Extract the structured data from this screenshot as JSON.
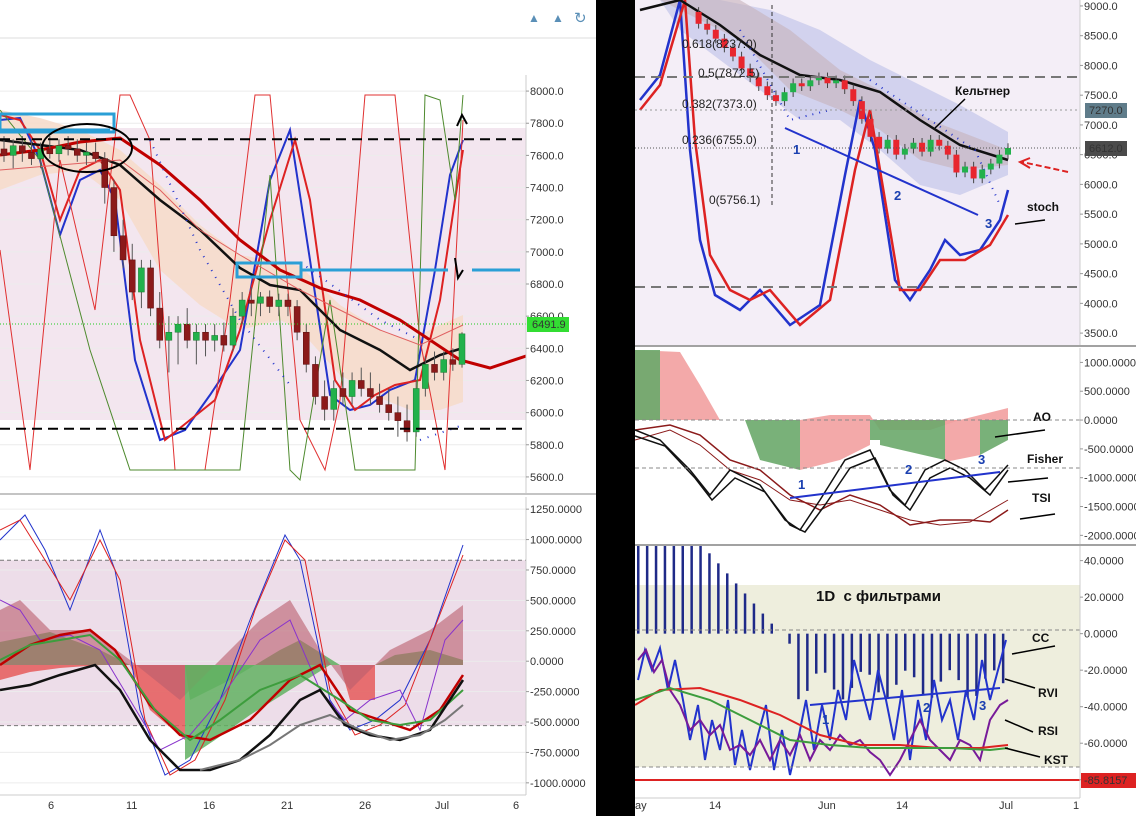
{
  "toolbar": {
    "icons": [
      "arrow-up-icon",
      "arrow-up-icon",
      "refresh-icon"
    ]
  },
  "colors": {
    "bull": "#22b14c",
    "bear": "#8b1a1a",
    "level": "#000000",
    "box": "#2a9fd6",
    "sma": "#c00000",
    "stoch_k": "#2233cc",
    "stoch_d": "#dd2222",
    "lime_tag": "#33dd33",
    "grey_tag": "#5f7c8a"
  },
  "chart_data": [
    {
      "type": "candlestick",
      "panel": "left-price",
      "y_ticks": [
        "8000.0",
        "7800.0",
        "7600.0",
        "7400.0",
        "7200.0",
        "7000.0",
        "6800.0",
        "6600.0",
        "6400.0",
        "6200.0",
        "6000.0",
        "5800.0",
        "5600.0"
      ],
      "x_ticks": [
        "6",
        "11",
        "16",
        "21",
        "26",
        "Jul",
        "6"
      ],
      "last_price": "6491.9",
      "ylim": [
        5500,
        8100
      ],
      "levels": [
        7700,
        5900
      ],
      "candles": [
        {
          "o": 7640,
          "h": 7720,
          "l": 7560,
          "c": 7600
        },
        {
          "o": 7600,
          "h": 7700,
          "l": 7520,
          "c": 7660
        },
        {
          "o": 7660,
          "h": 7720,
          "l": 7560,
          "c": 7620
        },
        {
          "o": 7620,
          "h": 7700,
          "l": 7540,
          "c": 7580
        },
        {
          "o": 7580,
          "h": 7680,
          "l": 7520,
          "c": 7640
        },
        {
          "o": 7640,
          "h": 7720,
          "l": 7580,
          "c": 7610
        },
        {
          "o": 7610,
          "h": 7700,
          "l": 7560,
          "c": 7660
        },
        {
          "o": 7660,
          "h": 7720,
          "l": 7600,
          "c": 7640
        },
        {
          "o": 7640,
          "h": 7700,
          "l": 7560,
          "c": 7600
        },
        {
          "o": 7600,
          "h": 7680,
          "l": 7540,
          "c": 7620
        },
        {
          "o": 7620,
          "h": 7680,
          "l": 7560,
          "c": 7580
        },
        {
          "o": 7580,
          "h": 7620,
          "l": 7300,
          "c": 7400
        },
        {
          "o": 7400,
          "h": 7450,
          "l": 7000,
          "c": 7100
        },
        {
          "o": 7100,
          "h": 7200,
          "l": 6900,
          "c": 6950
        },
        {
          "o": 6950,
          "h": 7050,
          "l": 6700,
          "c": 6750
        },
        {
          "o": 6750,
          "h": 6950,
          "l": 6650,
          "c": 6900
        },
        {
          "o": 6900,
          "h": 6950,
          "l": 6600,
          "c": 6650
        },
        {
          "o": 6650,
          "h": 6750,
          "l": 6400,
          "c": 6450
        },
        {
          "o": 6450,
          "h": 6600,
          "l": 6250,
          "c": 6500
        },
        {
          "o": 6500,
          "h": 6600,
          "l": 6300,
          "c": 6550
        },
        {
          "o": 6550,
          "h": 6650,
          "l": 6400,
          "c": 6450
        },
        {
          "o": 6450,
          "h": 6550,
          "l": 6300,
          "c": 6500
        },
        {
          "o": 6500,
          "h": 6550,
          "l": 6350,
          "c": 6450
        },
        {
          "o": 6450,
          "h": 6550,
          "l": 6380,
          "c": 6480
        },
        {
          "o": 6480,
          "h": 6560,
          "l": 6380,
          "c": 6420
        },
        {
          "o": 6420,
          "h": 6650,
          "l": 6380,
          "c": 6600
        },
        {
          "o": 6600,
          "h": 6750,
          "l": 6550,
          "c": 6700
        },
        {
          "o": 6700,
          "h": 6780,
          "l": 6600,
          "c": 6680
        },
        {
          "o": 6680,
          "h": 6750,
          "l": 6600,
          "c": 6720
        },
        {
          "o": 6720,
          "h": 6760,
          "l": 6620,
          "c": 6660
        },
        {
          "o": 6660,
          "h": 6740,
          "l": 6600,
          "c": 6700
        },
        {
          "o": 6700,
          "h": 6740,
          "l": 6600,
          "c": 6660
        },
        {
          "o": 6660,
          "h": 6700,
          "l": 6450,
          "c": 6500
        },
        {
          "o": 6500,
          "h": 6550,
          "l": 6250,
          "c": 6300
        },
        {
          "o": 6300,
          "h": 6350,
          "l": 6050,
          "c": 6100
        },
        {
          "o": 6100,
          "h": 6200,
          "l": 5950,
          "c": 6020
        },
        {
          "o": 6020,
          "h": 6200,
          "l": 5950,
          "c": 6150
        },
        {
          "o": 6150,
          "h": 6250,
          "l": 6050,
          "c": 6100
        },
        {
          "o": 6100,
          "h": 6250,
          "l": 6050,
          "c": 6200
        },
        {
          "o": 6200,
          "h": 6280,
          "l": 6100,
          "c": 6150
        },
        {
          "o": 6150,
          "h": 6250,
          "l": 6050,
          "c": 6100
        },
        {
          "o": 6100,
          "h": 6180,
          "l": 6000,
          "c": 6050
        },
        {
          "o": 6050,
          "h": 6150,
          "l": 5950,
          "c": 6000
        },
        {
          "o": 6000,
          "h": 6100,
          "l": 5850,
          "c": 5950
        },
        {
          "o": 5950,
          "h": 6050,
          "l": 5820,
          "c": 5880
        },
        {
          "o": 5880,
          "h": 6200,
          "l": 5850,
          "c": 6150
        },
        {
          "o": 6150,
          "h": 6350,
          "l": 6100,
          "c": 6300
        },
        {
          "o": 6300,
          "h": 6380,
          "l": 6200,
          "c": 6250
        },
        {
          "o": 6250,
          "h": 6380,
          "l": 6200,
          "c": 6330
        },
        {
          "o": 6330,
          "h": 6400,
          "l": 6260,
          "c": 6300
        },
        {
          "o": 6300,
          "h": 6500,
          "l": 6280,
          "c": 6490
        }
      ]
    },
    {
      "type": "line",
      "panel": "left-oscillators",
      "y_ticks": [
        "1250.0000",
        "1000.0000",
        "750.0000",
        "500.0000",
        "250.0000",
        "0.0000",
        "-250.0000",
        "-500.0000",
        "-750.0000",
        "-1000.0000"
      ],
      "x_ticks": [
        "6",
        "11",
        "16",
        "21",
        "26",
        "Jul",
        "6"
      ],
      "ylim": [
        -1100,
        1350
      ],
      "band": [
        830,
        -530
      ]
    },
    {
      "type": "candlestick",
      "panel": "right-price",
      "y_ticks": [
        "9000.0",
        "8500.0",
        "8000.0",
        "7500.0",
        "7000.0",
        "6500.0",
        "6000.0",
        "5500.0",
        "5000.0",
        "4500.0",
        "4000.0",
        "3500.0"
      ],
      "x_ticks": [
        "ay",
        "14",
        "Jun",
        "14",
        "Jul",
        "1"
      ],
      "ylim": [
        3300,
        9100
      ],
      "tags": [
        "7270.0",
        "6612.0"
      ],
      "fib": [
        "0.618(8237.0)",
        "0.5(7872.5)",
        "0.382(7373.0)",
        "0.236(6755.0)",
        "0(5756.1)"
      ],
      "labels": [
        "Кельтнер",
        "stoch",
        "1",
        "2",
        "3"
      ]
    },
    {
      "type": "line",
      "panel": "right-middle",
      "y_ticks": [
        "1000.0000",
        "500.0000",
        "0.0000",
        "-500.0000",
        "-1000.0000",
        "-1500.0000",
        "-2000.0000"
      ],
      "ylim": [
        -2150,
        1250
      ],
      "labels": [
        "AO",
        "Fisher",
        "TSI",
        "1",
        "2",
        "3"
      ]
    },
    {
      "type": "line",
      "panel": "right-bottom",
      "title": "1D  с фильтрами",
      "y_ticks": [
        "40.0000",
        "20.0000",
        "0.0000",
        "-20.0000",
        "-40.0000",
        "-60.0000",
        "-80.0000"
      ],
      "ylim": [
        -90,
        48
      ],
      "last_tag": "-85.8157",
      "labels": [
        "CC",
        "RVI",
        "RSI",
        "KST",
        "1",
        "2",
        "3"
      ]
    }
  ]
}
